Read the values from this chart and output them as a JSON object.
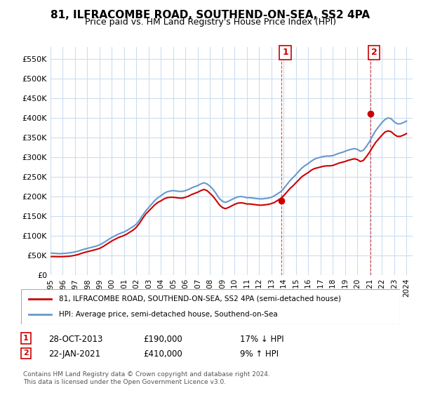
{
  "title": "81, ILFRACOMBE ROAD, SOUTHEND-ON-SEA, SS2 4PA",
  "subtitle": "Price paid vs. HM Land Registry's House Price Index (HPI)",
  "xlabel": "",
  "ylabel": "",
  "ylim": [
    0,
    580000
  ],
  "yticks": [
    0,
    50000,
    100000,
    150000,
    200000,
    250000,
    300000,
    350000,
    400000,
    450000,
    500000,
    550000
  ],
  "ytick_labels": [
    "£0",
    "£50K",
    "£100K",
    "£150K",
    "£200K",
    "£250K",
    "£300K",
    "£350K",
    "£400K",
    "£450K",
    "£500K",
    "£550K"
  ],
  "background_color": "#ffffff",
  "plot_bg_color": "#ffffff",
  "grid_color": "#ccddee",
  "line1_color": "#cc0000",
  "line2_color": "#6699cc",
  "marker1_color": "#cc0000",
  "annotation1": {
    "x_year": 2013.82,
    "y": 190000,
    "label": "1"
  },
  "annotation2": {
    "x_year": 2021.06,
    "y": 410000,
    "label": "2"
  },
  "legend_line1": "81, ILFRACOMBE ROAD, SOUTHEND-ON-SEA, SS2 4PA (semi-detached house)",
  "legend_line2": "HPI: Average price, semi-detached house, Southend-on-Sea",
  "table_row1": [
    "1",
    "28-OCT-2013",
    "£190,000",
    "17% ↓ HPI"
  ],
  "table_row2": [
    "2",
    "22-JAN-2021",
    "£410,000",
    "9% ↑ HPI"
  ],
  "footnote": "Contains HM Land Registry data © Crown copyright and database right 2024.\nThis data is licensed under the Open Government Licence v3.0.",
  "hpi_data": {
    "years": [
      1995.0,
      1995.25,
      1995.5,
      1995.75,
      1996.0,
      1996.25,
      1996.5,
      1996.75,
      1997.0,
      1997.25,
      1997.5,
      1997.75,
      1998.0,
      1998.25,
      1998.5,
      1998.75,
      1999.0,
      1999.25,
      1999.5,
      1999.75,
      2000.0,
      2000.25,
      2000.5,
      2000.75,
      2001.0,
      2001.25,
      2001.5,
      2001.75,
      2002.0,
      2002.25,
      2002.5,
      2002.75,
      2003.0,
      2003.25,
      2003.5,
      2003.75,
      2004.0,
      2004.25,
      2004.5,
      2004.75,
      2005.0,
      2005.25,
      2005.5,
      2005.75,
      2006.0,
      2006.25,
      2006.5,
      2006.75,
      2007.0,
      2007.25,
      2007.5,
      2007.75,
      2008.0,
      2008.25,
      2008.5,
      2008.75,
      2009.0,
      2009.25,
      2009.5,
      2009.75,
      2010.0,
      2010.25,
      2010.5,
      2010.75,
      2011.0,
      2011.25,
      2011.5,
      2011.75,
      2012.0,
      2012.25,
      2012.5,
      2012.75,
      2013.0,
      2013.25,
      2013.5,
      2013.75,
      2014.0,
      2014.25,
      2014.5,
      2014.75,
      2015.0,
      2015.25,
      2015.5,
      2015.75,
      2016.0,
      2016.25,
      2016.5,
      2016.75,
      2017.0,
      2017.25,
      2017.5,
      2017.75,
      2018.0,
      2018.25,
      2018.5,
      2018.75,
      2019.0,
      2019.25,
      2019.5,
      2019.75,
      2020.0,
      2020.25,
      2020.5,
      2020.75,
      2021.0,
      2021.25,
      2021.5,
      2021.75,
      2022.0,
      2022.25,
      2022.5,
      2022.75,
      2023.0,
      2023.25,
      2023.5,
      2023.75,
      2024.0
    ],
    "values": [
      56000,
      55500,
      55000,
      54500,
      55000,
      55500,
      56500,
      57500,
      59000,
      61000,
      63500,
      66000,
      68000,
      70000,
      72000,
      74000,
      77000,
      81000,
      86000,
      91000,
      96000,
      100000,
      104000,
      107000,
      110000,
      114000,
      119000,
      124000,
      130000,
      140000,
      152000,
      163000,
      172000,
      181000,
      190000,
      197000,
      202000,
      208000,
      212000,
      214000,
      215000,
      214000,
      213000,
      213000,
      215000,
      218000,
      222000,
      225000,
      228000,
      232000,
      235000,
      232000,
      226000,
      218000,
      207000,
      195000,
      188000,
      185000,
      188000,
      192000,
      196000,
      199000,
      200000,
      199000,
      197000,
      197000,
      196000,
      195000,
      194000,
      194000,
      195000,
      196000,
      198000,
      202000,
      207000,
      212000,
      220000,
      230000,
      240000,
      248000,
      256000,
      265000,
      273000,
      279000,
      284000,
      290000,
      295000,
      298000,
      300000,
      302000,
      303000,
      303000,
      304000,
      307000,
      310000,
      312000,
      315000,
      318000,
      320000,
      322000,
      320000,
      315000,
      318000,
      328000,
      340000,
      355000,
      368000,
      378000,
      388000,
      396000,
      400000,
      398000,
      390000,
      385000,
      385000,
      388000,
      392000
    ]
  },
  "price_data": {
    "years": [
      1995.0,
      1995.25,
      1995.5,
      1995.75,
      1996.0,
      1996.25,
      1996.5,
      1996.75,
      1997.0,
      1997.25,
      1997.5,
      1997.75,
      1998.0,
      1998.25,
      1998.5,
      1998.75,
      1999.0,
      1999.25,
      1999.5,
      1999.75,
      2000.0,
      2000.25,
      2000.5,
      2000.75,
      2001.0,
      2001.25,
      2001.5,
      2001.75,
      2002.0,
      2002.25,
      2002.5,
      2002.75,
      2003.0,
      2003.25,
      2003.5,
      2003.75,
      2004.0,
      2004.25,
      2004.5,
      2004.75,
      2005.0,
      2005.25,
      2005.5,
      2005.75,
      2006.0,
      2006.25,
      2006.5,
      2006.75,
      2007.0,
      2007.25,
      2007.5,
      2007.75,
      2008.0,
      2008.25,
      2008.5,
      2008.75,
      2009.0,
      2009.25,
      2009.5,
      2009.75,
      2010.0,
      2010.25,
      2010.5,
      2010.75,
      2011.0,
      2011.25,
      2011.5,
      2011.75,
      2012.0,
      2012.25,
      2012.5,
      2012.75,
      2013.0,
      2013.25,
      2013.5,
      2013.75,
      2014.0,
      2014.25,
      2014.5,
      2014.75,
      2015.0,
      2015.25,
      2015.5,
      2015.75,
      2016.0,
      2016.25,
      2016.5,
      2016.75,
      2017.0,
      2017.25,
      2017.5,
      2017.75,
      2018.0,
      2018.25,
      2018.5,
      2018.75,
      2019.0,
      2019.25,
      2019.5,
      2019.75,
      2020.0,
      2020.25,
      2020.5,
      2020.75,
      2021.0,
      2021.25,
      2021.5,
      2021.75,
      2022.0,
      2022.25,
      2022.5,
      2022.75,
      2023.0,
      2023.25,
      2023.5,
      2023.75,
      2024.0
    ],
    "values": [
      47000,
      47200,
      47000,
      46800,
      47000,
      47500,
      48000,
      49000,
      50500,
      52500,
      55000,
      57500,
      59500,
      61500,
      63500,
      65500,
      68000,
      72000,
      77000,
      82000,
      87000,
      91000,
      95000,
      98000,
      101000,
      105000,
      110000,
      115000,
      122000,
      132000,
      144000,
      155000,
      163000,
      171000,
      179000,
      185000,
      189000,
      194000,
      197000,
      198000,
      198000,
      197000,
      196000,
      196000,
      198000,
      201000,
      205000,
      208000,
      211000,
      215000,
      218000,
      215000,
      208000,
      200000,
      190000,
      179000,
      172000,
      169000,
      172000,
      176000,
      180000,
      183000,
      184000,
      183000,
      181000,
      181000,
      180000,
      179000,
      178000,
      178000,
      179000,
      180000,
      182000,
      185000,
      190000,
      195000,
      202000,
      211000,
      220000,
      227000,
      235000,
      243000,
      251000,
      256000,
      261000,
      267000,
      271000,
      273000,
      275000,
      277000,
      278000,
      278000,
      279000,
      282000,
      285000,
      287000,
      289000,
      292000,
      294000,
      296000,
      294000,
      289000,
      292000,
      302000,
      313000,
      326000,
      338000,
      347000,
      356000,
      364000,
      367000,
      365000,
      358000,
      353000,
      353000,
      356000,
      360000
    ]
  },
  "xtick_years": [
    1995,
    1996,
    1997,
    1998,
    1999,
    2000,
    2001,
    2002,
    2003,
    2004,
    2005,
    2006,
    2007,
    2008,
    2009,
    2010,
    2011,
    2012,
    2013,
    2014,
    2015,
    2016,
    2017,
    2018,
    2019,
    2020,
    2021,
    2022,
    2023,
    2024
  ]
}
